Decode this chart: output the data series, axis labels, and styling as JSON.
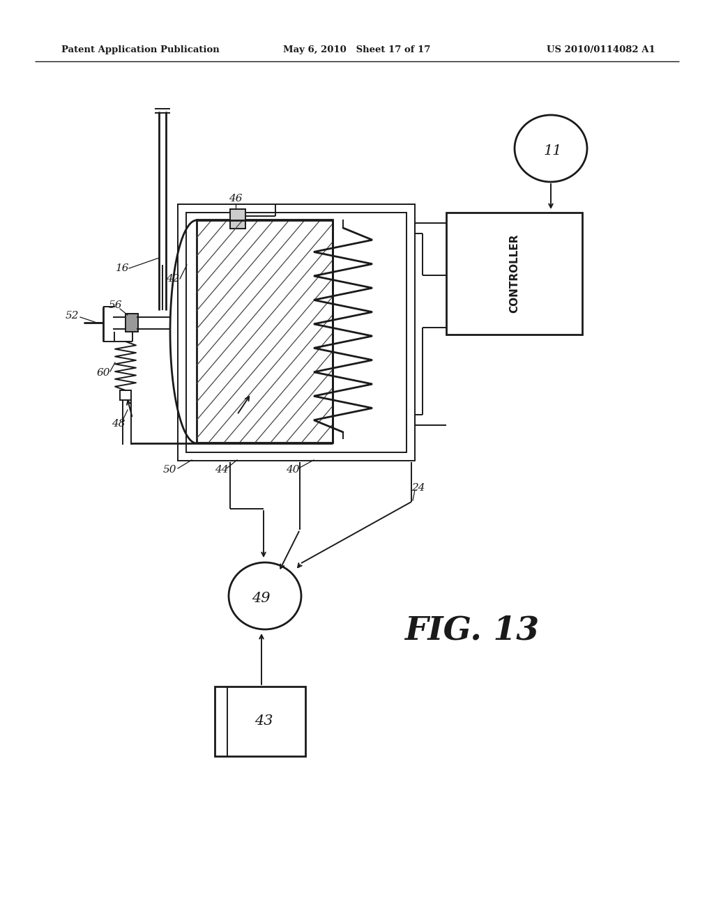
{
  "header_left": "Patent Application Publication",
  "header_mid": "May 6, 2010   Sheet 17 of 17",
  "header_right": "US 2010/0114082 A1",
  "fig_label": "FIG. 13",
  "bg": "#ffffff"
}
